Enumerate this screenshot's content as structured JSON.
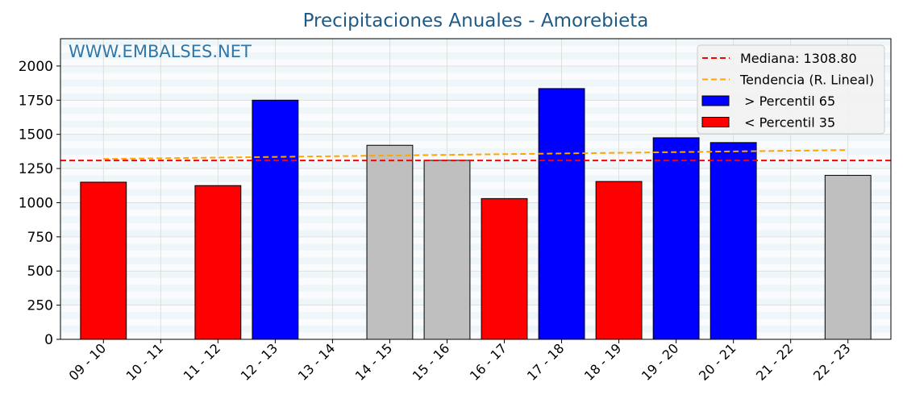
{
  "chart_data": {
    "type": "bar",
    "title": "Precipitaciones Anuales - Amorebieta",
    "watermark": "WWW.EMBALSES.NET",
    "categories": [
      "09 - 10",
      "10 - 11",
      "11 - 12",
      "12 - 13",
      "13 - 14",
      "14 - 15",
      "15 - 16",
      "16 - 17",
      "17 - 18",
      "18 - 19",
      "19 - 20",
      "20 - 21",
      "21 - 22",
      "22 - 23"
    ],
    "values": [
      1150,
      null,
      1125,
      1750,
      null,
      1420,
      1310,
      1030,
      1835,
      1155,
      1475,
      1440,
      null,
      1200
    ],
    "bar_classes": [
      "low",
      null,
      "low",
      "high",
      null,
      "mid",
      "mid",
      "low",
      "high",
      "low",
      "high",
      "high",
      null,
      "mid"
    ],
    "colors": {
      "high": "#0000ff",
      "low": "#ff0000",
      "mid": "#bfbfbf",
      "median": "#ff0000",
      "trend": "#ffa500"
    },
    "median": 1308.8,
    "trend": {
      "start": 1320,
      "end": 1385
    },
    "ylim": [
      0,
      2200
    ],
    "yticks": [
      0,
      250,
      500,
      750,
      1000,
      1250,
      1500,
      1750,
      2000
    ],
    "legend": {
      "position": "top-right",
      "items": [
        {
          "label": "Mediana: 1308.80",
          "kind": "dash",
          "color": "#ff0000"
        },
        {
          "label": "Tendencia (R. Lineal)",
          "kind": "dash",
          "color": "#ffa500"
        },
        {
          "label": " > Percentil 65",
          "kind": "box",
          "color": "#0000ff"
        },
        {
          "label": " < Percentil 35",
          "kind": "box",
          "color": "#ff0000"
        }
      ]
    },
    "grid": true,
    "xlabel": "",
    "ylabel": ""
  }
}
